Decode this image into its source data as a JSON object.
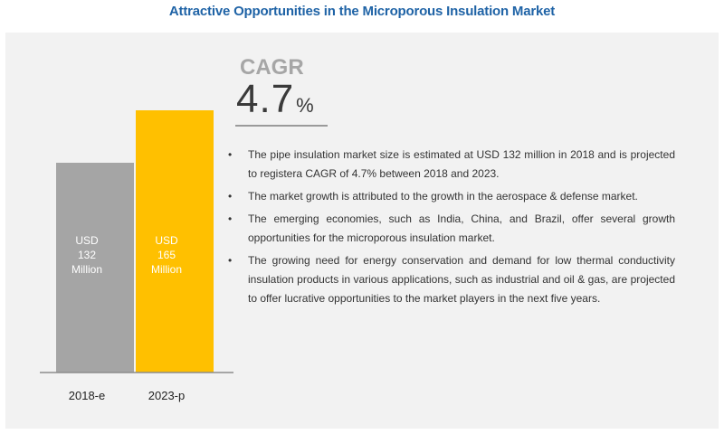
{
  "title": "Attractive Opportunities in the Microporous Insulation Market",
  "cagr": {
    "label": "CAGR",
    "value": "4.7",
    "unit": "%"
  },
  "bullet_symbol": "•",
  "bullets": [
    "The pipe insulation market size is estimated at USD 132 million in 2018 and is projected to registera CAGR of 4.7% between 2018 and 2023.",
    "The market growth is attributed to the growth in the aerospace & defense market.",
    "The emerging economies, such as India, China, and Brazil, offer several growth opportunities for the microporous insulation market.",
    "The growing need for energy conservation and demand  for low thermal conductivity insulation products in various applications, such as industrial and oil & gas, are projected to offer lucrative opportunities to the market players in the next five years."
  ],
  "chart_data": {
    "type": "bar",
    "categories": [
      "2018-e",
      "2023-p"
    ],
    "values": [
      132,
      165
    ],
    "data_labels": [
      [
        "USD",
        "132",
        "Million"
      ],
      [
        "USD",
        "165",
        "Million"
      ]
    ],
    "colors": [
      "#a5a5a5",
      "#ffc000"
    ],
    "label_color": "#ffffff",
    "axis_color": "#8c8c8c",
    "grid": false
  }
}
